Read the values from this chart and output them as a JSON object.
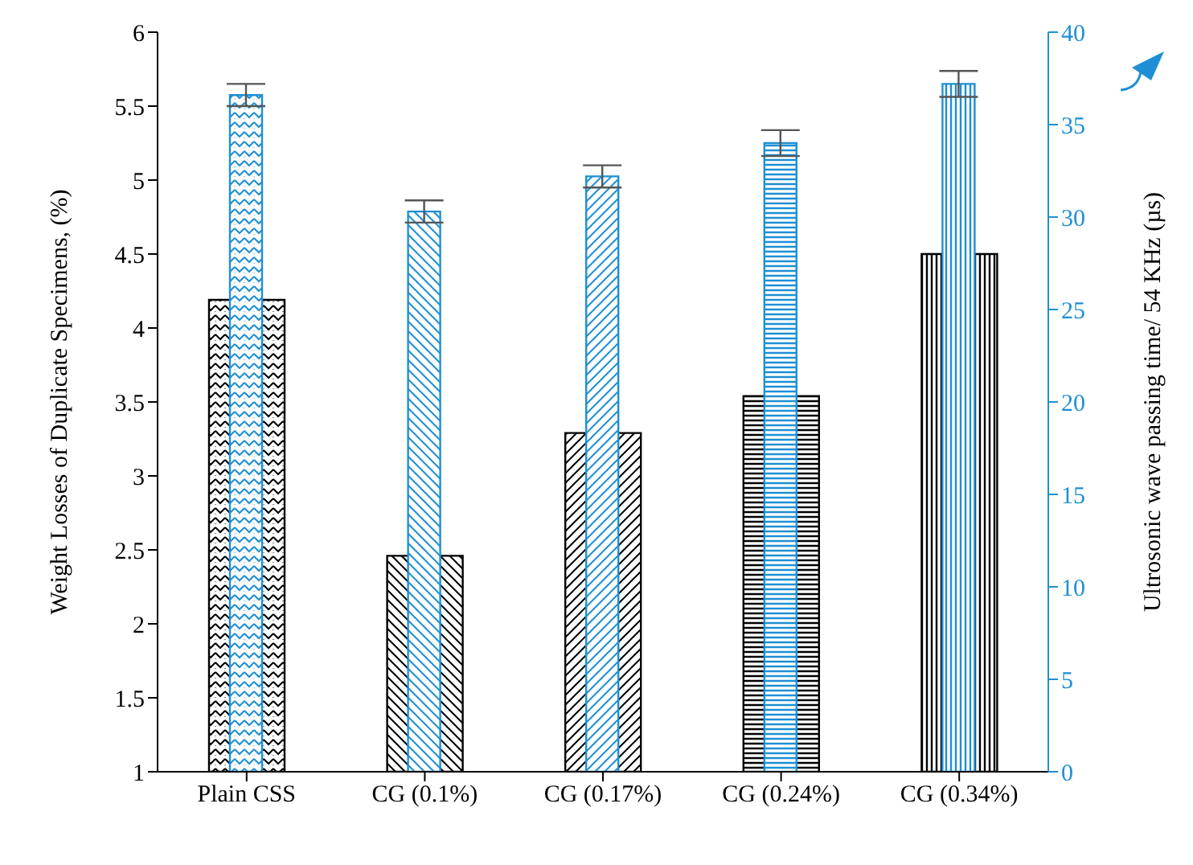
{
  "chart_data": {
    "type": "bar",
    "categories": [
      "Plain CSS",
      "CG (0.1%)",
      "CG (0.17%)",
      "CG (0.24%)",
      "CG (0.34%)"
    ],
    "series": [
      {
        "color": "#000000",
        "values": [
          4.19,
          2.46,
          3.29,
          3.54,
          4.5
        ]
      },
      {
        "color": "#1e8fd6",
        "axis": "y2",
        "values": [
          36.6,
          30.3,
          32.2,
          34.0,
          37.2
        ],
        "errors": [
          0.6,
          0.6,
          0.6,
          0.7,
          0.7
        ]
      }
    ],
    "ylabel": "Weight Losses of Duplicate Specimens, (%)",
    "y2label": "Ultrosonic wave passing time/ 54 KHz (µs)",
    "ylim": [
      1,
      6
    ],
    "yticks": [
      1,
      1.5,
      2,
      2.5,
      3,
      3.5,
      4,
      4.5,
      5,
      5.5,
      6
    ],
    "y2lim": [
      0,
      40
    ],
    "y2ticks": [
      0,
      5,
      10,
      15,
      20,
      25,
      30,
      35,
      40
    ]
  }
}
